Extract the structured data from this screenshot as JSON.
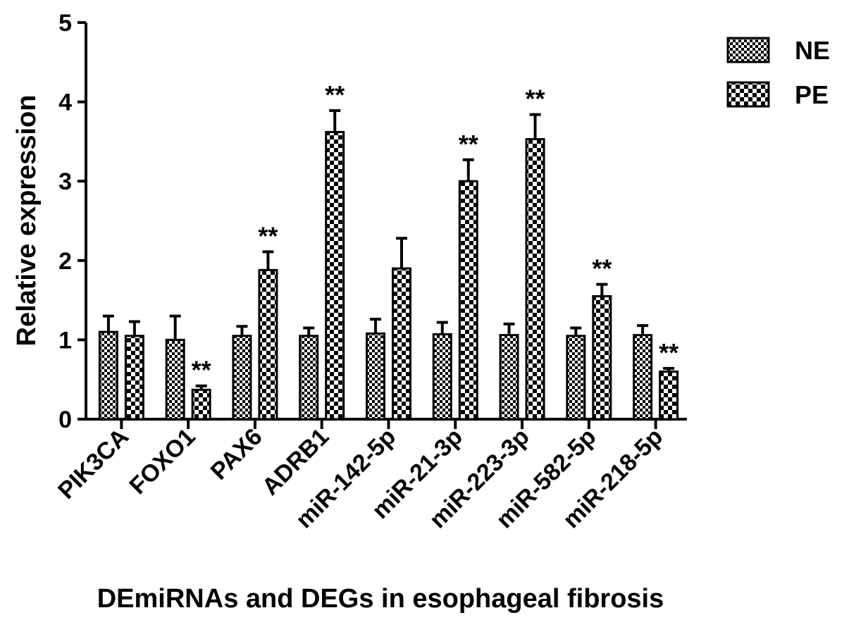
{
  "chart_data": {
    "type": "bar",
    "x_label": "DEmiRNAs and DEGs in esophageal fibrosis",
    "y_label": "Relative expression",
    "categories": [
      "PIK3CA",
      "FOXO1",
      "PAX6",
      "ADRB1",
      "miR-142-5p",
      "miR-21-3p",
      "miR-223-3p",
      "miR-582-5p",
      "miR-218-5p"
    ],
    "series": [
      {
        "name": "NE",
        "color": "#000000",
        "pattern": "fine",
        "values": [
          1.1,
          1.0,
          1.05,
          1.05,
          1.08,
          1.07,
          1.06,
          1.05,
          1.06
        ],
        "errors": [
          0.2,
          0.3,
          0.12,
          0.1,
          0.18,
          0.15,
          0.14,
          0.1,
          0.12
        ]
      },
      {
        "name": "PE",
        "color": "#000000",
        "pattern": "coarse",
        "values": [
          1.05,
          0.37,
          1.88,
          3.62,
          1.9,
          3.0,
          3.53,
          1.55,
          0.6
        ],
        "errors": [
          0.18,
          0.05,
          0.23,
          0.27,
          0.38,
          0.27,
          0.31,
          0.15,
          0.04
        ],
        "annotations": [
          null,
          "**",
          "**",
          "**",
          null,
          "**",
          "**",
          "**",
          "**"
        ]
      }
    ],
    "ylim": [
      0,
      5
    ],
    "yticks": [
      0,
      1,
      2,
      3,
      4,
      5
    ],
    "grid": false,
    "legend": "top-right"
  }
}
